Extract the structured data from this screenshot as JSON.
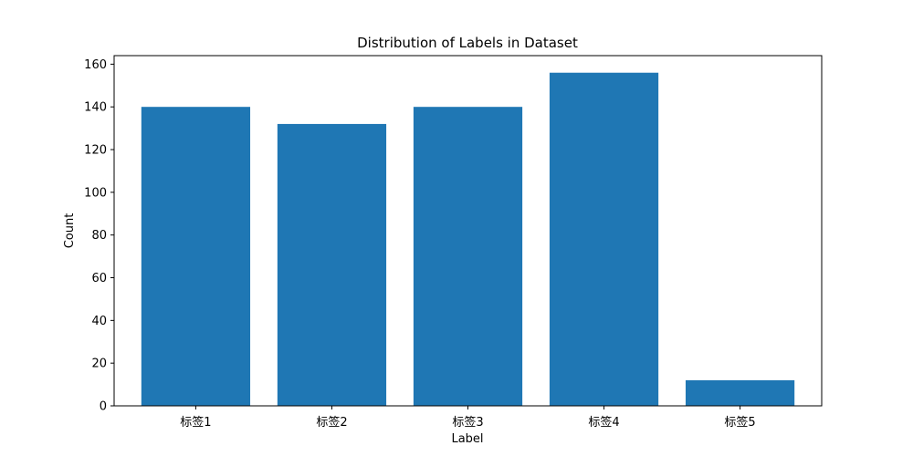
{
  "chart_data": {
    "type": "bar",
    "title": "Distribution of Labels in Dataset",
    "xlabel": "Label",
    "ylabel": "Count",
    "categories": [
      "标签1",
      "标签2",
      "标签3",
      "标签4",
      "标签5"
    ],
    "values": [
      140,
      132,
      140,
      156,
      12
    ],
    "ylim": [
      0,
      164
    ],
    "yticks": [
      0,
      20,
      40,
      60,
      80,
      100,
      120,
      140,
      160
    ],
    "grid": false,
    "bar_color": "#1f77b4"
  }
}
